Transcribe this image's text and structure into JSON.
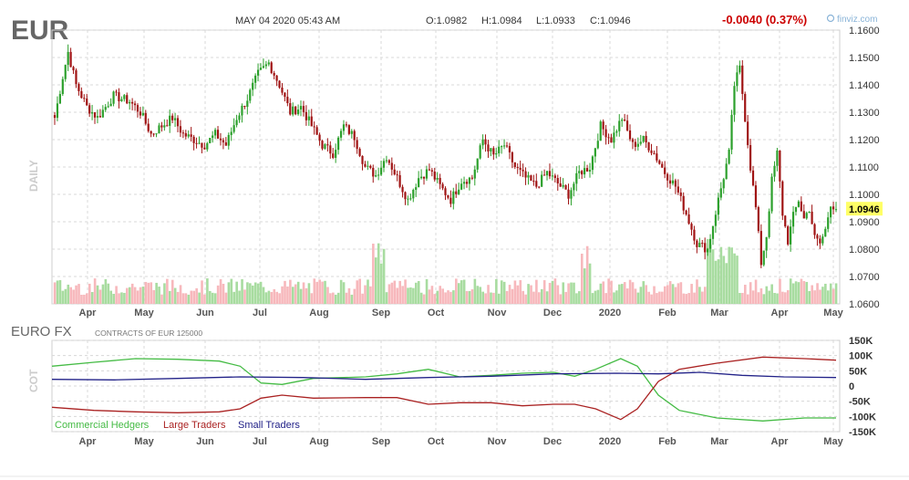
{
  "header": {
    "ticker": "EUR",
    "datetime": "MAY 04 2020 05:43 AM",
    "open": "O:1.0982",
    "high": "H:1.0984",
    "low": "L:1.0933",
    "close": "C:1.0946",
    "change": "-0.0040 (0.37%)",
    "brand": "finviz.com"
  },
  "colors": {
    "up": "#2ca02c",
    "down": "#a01414",
    "vol_up": "#a8dca0",
    "vol_down": "#f7b8bc",
    "grid": "#d8d8d8",
    "last_price_bg": "#ffff66",
    "commercial": "#44bb44",
    "large": "#aa2222",
    "small": "#222288",
    "change": "#cc0000"
  },
  "chart_data": [
    {
      "type": "candlestick",
      "period_label": "DAILY",
      "ylim": [
        1.06,
        1.16
      ],
      "y_ticks": [
        "1.1600",
        "1.1500",
        "1.1400",
        "1.1300",
        "1.1200",
        "1.1100",
        "1.1000",
        "1.0900",
        "1.0800",
        "1.0700",
        "1.0600"
      ],
      "x_ticks": [
        "Apr",
        "May",
        "Jun",
        "Jul",
        "Aug",
        "Sep",
        "Oct",
        "Nov",
        "Dec",
        "2020",
        "Feb",
        "Mar",
        "Apr",
        "May"
      ],
      "last_price": "1.0946",
      "close_anchors": [
        [
          0,
          1.128
        ],
        [
          3,
          1.143
        ],
        [
          5,
          1.152
        ],
        [
          8,
          1.14
        ],
        [
          12,
          1.132
        ],
        [
          16,
          1.128
        ],
        [
          22,
          1.136
        ],
        [
          28,
          1.134
        ],
        [
          32,
          1.13
        ],
        [
          36,
          1.122
        ],
        [
          40,
          1.125
        ],
        [
          44,
          1.128
        ],
        [
          48,
          1.122
        ],
        [
          52,
          1.12
        ],
        [
          56,
          1.118
        ],
        [
          60,
          1.122
        ],
        [
          64,
          1.118
        ],
        [
          68,
          1.128
        ],
        [
          72,
          1.135
        ],
        [
          76,
          1.144
        ],
        [
          80,
          1.148
        ],
        [
          84,
          1.14
        ],
        [
          88,
          1.13
        ],
        [
          92,
          1.132
        ],
        [
          96,
          1.125
        ],
        [
          100,
          1.118
        ],
        [
          104,
          1.115
        ],
        [
          108,
          1.125
        ],
        [
          112,
          1.121
        ],
        [
          116,
          1.11
        ],
        [
          120,
          1.107
        ],
        [
          124,
          1.114
        ],
        [
          128,
          1.106
        ],
        [
          132,
          1.098
        ],
        [
          136,
          1.106
        ],
        [
          140,
          1.109
        ],
        [
          144,
          1.103
        ],
        [
          148,
          1.098
        ],
        [
          152,
          1.105
        ],
        [
          156,
          1.106
        ],
        [
          160,
          1.12
        ],
        [
          164,
          1.114
        ],
        [
          168,
          1.118
        ],
        [
          172,
          1.11
        ],
        [
          176,
          1.106
        ],
        [
          180,
          1.103
        ],
        [
          184,
          1.108
        ],
        [
          188,
          1.104
        ],
        [
          192,
          1.1
        ],
        [
          196,
          1.108
        ],
        [
          200,
          1.11
        ],
        [
          204,
          1.125
        ],
        [
          208,
          1.12
        ],
        [
          212,
          1.128
        ],
        [
          216,
          1.118
        ],
        [
          220,
          1.12
        ],
        [
          224,
          1.115
        ],
        [
          228,
          1.108
        ],
        [
          232,
          1.103
        ],
        [
          236,
          1.093
        ],
        [
          240,
          1.082
        ],
        [
          244,
          1.08
        ],
        [
          248,
          1.098
        ],
        [
          252,
          1.115
        ],
        [
          254,
          1.14
        ],
        [
          256,
          1.146
        ],
        [
          258,
          1.128
        ],
        [
          260,
          1.11
        ],
        [
          262,
          1.095
        ],
        [
          264,
          1.075
        ],
        [
          266,
          1.085
        ],
        [
          268,
          1.105
        ],
        [
          270,
          1.115
        ],
        [
          272,
          1.093
        ],
        [
          274,
          1.083
        ],
        [
          276,
          1.092
        ],
        [
          278,
          1.098
        ],
        [
          280,
          1.091
        ],
        [
          282,
          1.095
        ],
        [
          284,
          1.084
        ],
        [
          286,
          1.082
        ],
        [
          288,
          1.087
        ],
        [
          290,
          1.097
        ],
        [
          292,
          1.0946
        ]
      ],
      "volume_profile": "low activity with spikes near Sep, Dec and early Mar"
    },
    {
      "type": "line",
      "title": "EURO FX",
      "subtitle": "CONTRACTS OF EUR 125000",
      "period_label": "COT",
      "ylim": [
        -150000,
        150000
      ],
      "y_ticks": [
        "150K",
        "100K",
        "50K",
        "0",
        "-50K",
        "-100K",
        "-150K"
      ],
      "x_ticks": [
        "Apr",
        "May",
        "Jun",
        "Jul",
        "Aug",
        "Sep",
        "Oct",
        "Nov",
        "Dec",
        "2020",
        "Feb",
        "Mar",
        "Apr",
        "May"
      ],
      "series": [
        {
          "name": "Commercial Hedgers",
          "points": [
            [
              0,
              65000
            ],
            [
              20,
              78000
            ],
            [
              40,
              90000
            ],
            [
              60,
              88000
            ],
            [
              80,
              82000
            ],
            [
              90,
              65000
            ],
            [
              100,
              10000
            ],
            [
              110,
              5000
            ],
            [
              125,
              25000
            ],
            [
              150,
              30000
            ],
            [
              165,
              40000
            ],
            [
              180,
              55000
            ],
            [
              195,
              30000
            ],
            [
              210,
              35000
            ],
            [
              225,
              42000
            ],
            [
              240,
              45000
            ],
            [
              250,
              32000
            ],
            [
              260,
              55000
            ],
            [
              272,
              90000
            ],
            [
              280,
              65000
            ],
            [
              290,
              -30000
            ],
            [
              300,
              -80000
            ],
            [
              318,
              -105000
            ],
            [
              340,
              -115000
            ],
            [
              360,
              -105000
            ],
            [
              375,
              -105000
            ]
          ]
        },
        {
          "name": "Large Traders",
          "points": [
            [
              0,
              -70000
            ],
            [
              20,
              -80000
            ],
            [
              40,
              -85000
            ],
            [
              60,
              -88000
            ],
            [
              80,
              -85000
            ],
            [
              90,
              -75000
            ],
            [
              100,
              -40000
            ],
            [
              110,
              -30000
            ],
            [
              125,
              -40000
            ],
            [
              150,
              -38000
            ],
            [
              165,
              -38000
            ],
            [
              180,
              -60000
            ],
            [
              195,
              -55000
            ],
            [
              210,
              -55000
            ],
            [
              225,
              -65000
            ],
            [
              240,
              -60000
            ],
            [
              250,
              -60000
            ],
            [
              260,
              -75000
            ],
            [
              272,
              -110000
            ],
            [
              280,
              -75000
            ],
            [
              290,
              15000
            ],
            [
              300,
              55000
            ],
            [
              318,
              75000
            ],
            [
              340,
              95000
            ],
            [
              360,
              90000
            ],
            [
              375,
              85000
            ]
          ]
        },
        {
          "name": "Small Traders",
          "points": [
            [
              0,
              22000
            ],
            [
              30,
              20000
            ],
            [
              60,
              25000
            ],
            [
              90,
              30000
            ],
            [
              120,
              28000
            ],
            [
              150,
              22000
            ],
            [
              180,
              28000
            ],
            [
              210,
              32000
            ],
            [
              240,
              40000
            ],
            [
              270,
              42000
            ],
            [
              290,
              40000
            ],
            [
              310,
              45000
            ],
            [
              330,
              35000
            ],
            [
              350,
              30000
            ],
            [
              375,
              28000
            ]
          ]
        }
      ]
    }
  ]
}
